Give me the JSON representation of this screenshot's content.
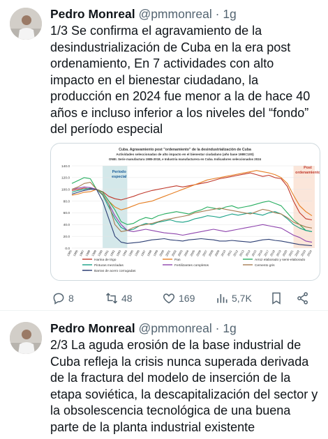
{
  "tweets": [
    {
      "name": "Pedro Monreal",
      "handle": "@pmmonreal",
      "separator": "·",
      "time": "1g",
      "text": "1/3 Se confirma el agravamiento de la desindustrialización de Cuba en la era post ordenamiento, En 7 actividades con alto impacto en el bienestar ciudadano, la producción en 2024 fue menor a la de hace 40 años e incluso inferior a los niveles del “fondo” del período especial",
      "stats": {
        "replies": "8",
        "retweets": "48",
        "likes": "169",
        "views": "5,7K"
      }
    },
    {
      "name": "Pedro Monreal",
      "handle": "@pmmonreal",
      "separator": "·",
      "time": "1g",
      "text": "2/3 La aguda erosión de la base industrial de Cuba refleja la crisis nunca superada derivada de la fractura del modelo de inserción de la etapa soviética, la descapitalización del sector y la obsolescencia tecnológica de una buena parte de la planta industrial existente"
    }
  ],
  "chart_data": {
    "type": "line",
    "title": "Cuba. Agravamiento post \"ordenamiento\" de la desindustrialización de Cuba",
    "subtitle": "Actividades seleccionadas de alto impacto en el bienestar ciudadano (año base 1989=100)",
    "subtitle2": "ONEI. Serie manufactura 1985-2018, e Industria manufacturera en Cuba. Indicadores seleccionados 2024",
    "annotations": [
      "Período especial",
      "Post ordenamiento"
    ],
    "ylim": [
      0,
      140
    ],
    "yticks": [
      "0.0",
      "20.0",
      "40.0",
      "60.0",
      "80.0",
      "100.0",
      "120.0",
      "140.0"
    ],
    "x": [
      1985,
      1986,
      1987,
      1988,
      1989,
      1990,
      1991,
      1992,
      1993,
      1994,
      1995,
      1996,
      1997,
      1998,
      1999,
      2000,
      2001,
      2002,
      2003,
      2004,
      2005,
      2006,
      2007,
      2008,
      2009,
      2010,
      2011,
      2012,
      2013,
      2014,
      2015,
      2016,
      2017,
      2018,
      2019,
      2020,
      2021,
      2022,
      2023,
      2024
    ],
    "series": [
      {
        "name": "Harina de trigo",
        "color": "#c0392b",
        "values": [
          98,
          100,
          102,
          101,
          100,
          96,
          88,
          84,
          82,
          85,
          88,
          92,
          95,
          98,
          100,
          102,
          104,
          106,
          104,
          106,
          108,
          110,
          112,
          115,
          118,
          120,
          122,
          124,
          126,
          128,
          125,
          122,
          124,
          120,
          118,
          105,
          80,
          60,
          50,
          48
        ]
      },
      {
        "name": "Pan",
        "color": "#e67e22",
        "values": [
          90,
          92,
          95,
          96,
          100,
          95,
          80,
          70,
          65,
          68,
          72,
          76,
          78,
          80,
          84,
          88,
          92,
          96,
          100,
          104,
          108,
          112,
          116,
          118,
          120,
          122,
          124,
          126,
          128,
          130,
          132,
          130,
          128,
          125,
          120,
          110,
          90,
          72,
          62,
          55
        ]
      },
      {
        "name": "Arroz elaborado y semi-elaborado",
        "color": "#27ae60",
        "values": [
          110,
          115,
          120,
          118,
          100,
          95,
          80,
          65,
          45,
          40,
          42,
          48,
          52,
          50,
          55,
          58,
          60,
          62,
          60,
          58,
          62,
          65,
          70,
          68,
          66,
          70,
          72,
          68,
          70,
          72,
          75,
          78,
          80,
          76,
          72,
          60,
          48,
          40,
          30,
          28
        ]
      },
      {
        "name": "Pinturas mezcladas",
        "color": "#16a085",
        "values": [
          95,
          98,
          100,
          102,
          100,
          90,
          70,
          50,
          35,
          30,
          32,
          38,
          42,
          40,
          44,
          46,
          48,
          45,
          44,
          46,
          50,
          52,
          55,
          54,
          52,
          55,
          58,
          56,
          58,
          60,
          58,
          56,
          60,
          62,
          58,
          50,
          40,
          34,
          30,
          28
        ]
      },
      {
        "name": "Fertilizantes completos",
        "color": "#8e44ad",
        "values": [
          100,
          102,
          104,
          103,
          100,
          92,
          75,
          55,
          40,
          30,
          28,
          30,
          32,
          30,
          28,
          26,
          25,
          24,
          22,
          24,
          26,
          28,
          30,
          32,
          30,
          28,
          30,
          32,
          34,
          36,
          38,
          40,
          38,
          36,
          34,
          28,
          22,
          18,
          12,
          10
        ]
      },
      {
        "name": "Cemento gris",
        "color": "#a67c52",
        "values": [
          100,
          104,
          110,
          112,
          100,
          92,
          75,
          40,
          28,
          30,
          35,
          38,
          40,
          42,
          45,
          48,
          50,
          52,
          54,
          56,
          60,
          62,
          64,
          66,
          68,
          66,
          64,
          62,
          60,
          58,
          62,
          66,
          64,
          60,
          58,
          52,
          44,
          40,
          36,
          34
        ]
      },
      {
        "name": "Barras de acero corrugadas",
        "color": "#2c3e73",
        "values": [
          92,
          95,
          98,
          100,
          100,
          80,
          50,
          20,
          10,
          8,
          9,
          10,
          12,
          14,
          15,
          16,
          14,
          13,
          12,
          14,
          15,
          16,
          15,
          14,
          12,
          12,
          13,
          12,
          11,
          10,
          12,
          14,
          15,
          13,
          12,
          10,
          8,
          6,
          5,
          4
        ]
      }
    ]
  }
}
